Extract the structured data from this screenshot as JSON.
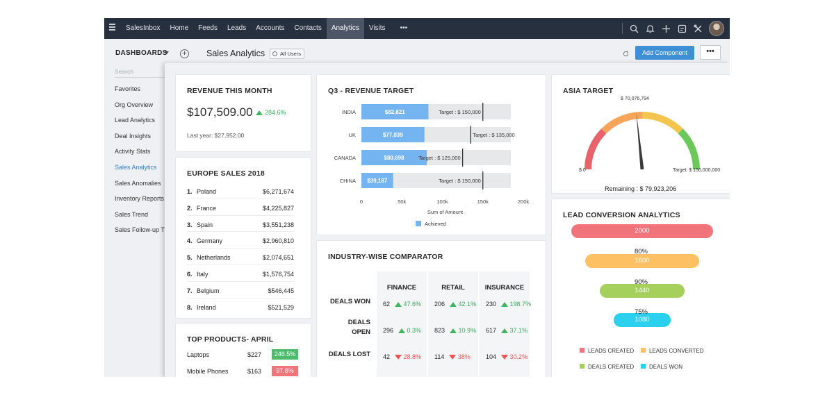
{
  "topnav": {
    "items": [
      {
        "label": "SalesInbox"
      },
      {
        "label": "Home"
      },
      {
        "label": "Feeds"
      },
      {
        "label": "Leads"
      },
      {
        "label": "Accounts"
      },
      {
        "label": "Contacts"
      },
      {
        "label": "Analytics",
        "active": true
      },
      {
        "label": "Visits"
      },
      {
        "label": "•••"
      }
    ],
    "icons": [
      "search-icon",
      "bell-icon",
      "plus-icon",
      "calendar-icon",
      "tools-icon",
      "avatar"
    ]
  },
  "header": {
    "dashboards_label": "DASHBOARDS",
    "page_title": "Sales Analytics",
    "all_users": "All Users",
    "add_component": "Add Component",
    "more": "•••"
  },
  "sidebar": {
    "search_placeholder": "Search",
    "items": [
      {
        "label": "Favorites"
      },
      {
        "label": "Org Overview"
      },
      {
        "label": "Lead Analytics"
      },
      {
        "label": "Deal Insights"
      },
      {
        "label": "Activity Stats"
      },
      {
        "label": "Sales Analytics",
        "active": true
      },
      {
        "label": "Sales Anomalies"
      },
      {
        "label": "Inventory Reports"
      },
      {
        "label": "Sales Trend"
      },
      {
        "label": "Sales Follow-up T"
      }
    ]
  },
  "revenue": {
    "title": "REVENUE THIS MONTH",
    "amount": "$107,509.00",
    "change": "284.6%",
    "last_year": "Last year: $27,952.00"
  },
  "europe": {
    "title": "EUROPE SALES 2018",
    "rows": [
      {
        "rank": "1.",
        "country": "Poland",
        "value": "$6,271,674"
      },
      {
        "rank": "2.",
        "country": "France",
        "value": "$4,225,827"
      },
      {
        "rank": "3.",
        "country": "Spain",
        "value": "$3,551,238"
      },
      {
        "rank": "4.",
        "country": "Germany",
        "value": "$2,960,810"
      },
      {
        "rank": "5.",
        "country": "Netherlands",
        "value": "$2,074,651"
      },
      {
        "rank": "6.",
        "country": "Italy",
        "value": "$1,576,754"
      },
      {
        "rank": "7.",
        "country": "Belgium",
        "value": "$546,445"
      },
      {
        "rank": "8.",
        "country": "Ireland",
        "value": "$521,529"
      }
    ]
  },
  "products": {
    "title": "TOP PRODUCTS- APRIL",
    "rows": [
      {
        "name": "Laptops",
        "price": "$227",
        "change": "246.5%",
        "color": "#4cbb6c"
      },
      {
        "name": "Mobile Phones",
        "price": "$163",
        "change": "97.8%",
        "color": "#f0747a"
      }
    ]
  },
  "q3": {
    "title": "Q3 - REVENUE TARGET",
    "chart_data": {
      "type": "bar",
      "categories": [
        "INDIA",
        "UK",
        "CANADA",
        "CHINA"
      ],
      "achieved": [
        82821,
        77839,
        80698,
        39187
      ],
      "achieved_labels": [
        "$82,821",
        "$77,839",
        "$80,698",
        "$39,187"
      ],
      "targets": [
        150000,
        135000,
        125000,
        150000
      ],
      "target_labels": [
        "Target : $ 150,000",
        "Target : $ 135,000",
        "Target : $ 125,000",
        "Target : $ 150,000"
      ],
      "xlim": [
        0,
        200000
      ],
      "xticks": [
        0,
        50000,
        100000,
        150000,
        200000
      ],
      "xtick_labels": [
        "0",
        "50k",
        "100k",
        "150k",
        "200k"
      ],
      "xlabel": "Sum of Amount",
      "legend": [
        {
          "name": "Achieved",
          "color": "#74b4f0"
        }
      ],
      "colors": {
        "achieved": "#74b4f0",
        "track": "#e7e8ea",
        "target_line": "#333333"
      }
    }
  },
  "industry": {
    "title": "INDUSTRY-WISE COMPARATOR",
    "columns": [
      "FINANCE",
      "RETAIL",
      "INSURANCE"
    ],
    "rows": [
      {
        "label": "DEALS WON",
        "cells": [
          {
            "value": "62",
            "pct": "47.6%",
            "dir": "up"
          },
          {
            "value": "206",
            "pct": "42.1%",
            "dir": "up"
          },
          {
            "value": "230",
            "pct": "198.7%",
            "dir": "up"
          }
        ]
      },
      {
        "label": "DEALS OPEN",
        "cells": [
          {
            "value": "296",
            "pct": "0.3%",
            "dir": "up"
          },
          {
            "value": "823",
            "pct": "10.9%",
            "dir": "up"
          },
          {
            "value": "617",
            "pct": "37.1%",
            "dir": "up"
          }
        ]
      },
      {
        "label": "DEALS LOST",
        "cells": [
          {
            "value": "42",
            "pct": "28.8%",
            "dir": "down"
          },
          {
            "value": "114",
            "pct": "38%",
            "dir": "down"
          },
          {
            "value": "104",
            "pct": "30.2%",
            "dir": "down"
          }
        ]
      }
    ]
  },
  "asia": {
    "title": "ASIA TARGET",
    "gauge": {
      "value": 70076794,
      "max": 150000000,
      "value_label": "$ 70,076,794",
      "min_label": "$ 0",
      "max_label": "Target: $ 150,000,000",
      "remaining": "Remaining : $ 79,923,206",
      "colors": [
        "#e8636a",
        "#f6a55a",
        "#f3c54e",
        "#6cc85a"
      ]
    }
  },
  "lead": {
    "title": "LEAD CONVERSION ANALYTICS",
    "funnel": [
      {
        "value": "2000",
        "fraction": 1.0,
        "color": "#f0747a"
      },
      {
        "value": "1600",
        "fraction": 0.8,
        "color": "#fdc063"
      },
      {
        "value": "1440",
        "fraction": 0.6,
        "color": "#a5d05c"
      },
      {
        "value": "1080",
        "fraction": 0.4,
        "color": "#2bd0ef"
      }
    ],
    "rates": [
      "80%",
      "90%",
      "75%"
    ],
    "legend": [
      {
        "label": "LEADS CREATED",
        "color": "#f0747a"
      },
      {
        "label": "LEADS CONVERTED",
        "color": "#fdc063"
      },
      {
        "label": "DEALS CREATED",
        "color": "#a5d05c"
      },
      {
        "label": "DEALS WON",
        "color": "#2bd0ef"
      }
    ]
  }
}
